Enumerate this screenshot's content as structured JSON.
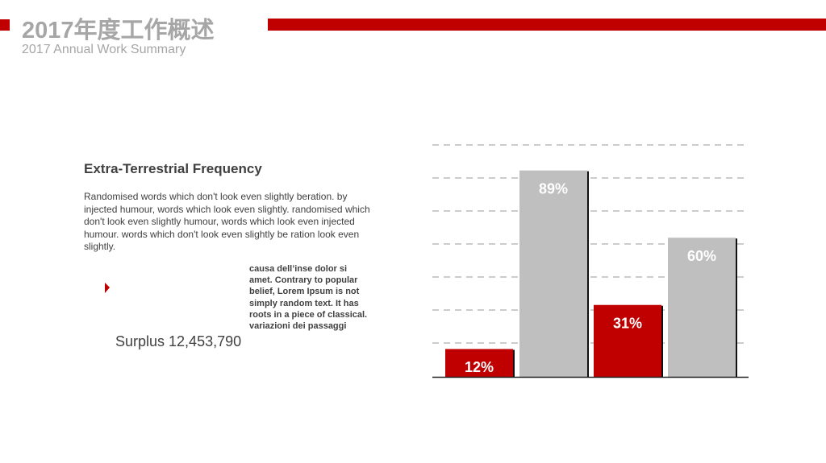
{
  "header": {
    "title": "2017年度工作概述",
    "subtitle": "2017 Annual Work Summary"
  },
  "content": {
    "heading": "Extra-Terrestrial Frequency",
    "paragraph": "Randomised words which don't look even slightly beration. by injected humour, words which look even slightly. randomised which don't look even slightly humour, words which look even injected humour. words which don't look even slightly be ration look even slightly.",
    "note": "causa dell’inse dolor si amet. Contrary to popular belief, Lorem Ipsum is not simply random text. It has roots in a piece of classical. variazioni dei passaggi",
    "surplus": "Surplus 12,453,790"
  },
  "chart_data": {
    "type": "bar",
    "categories": [
      null,
      null,
      null,
      null
    ],
    "values": [
      12,
      89,
      31,
      60
    ],
    "value_labels": [
      "12%",
      "89%",
      "31%",
      "60%"
    ],
    "colors": [
      "#c00000",
      "#bfbfbf",
      "#c00000",
      "#bfbfbf"
    ],
    "ylim": [
      0,
      100
    ]
  }
}
